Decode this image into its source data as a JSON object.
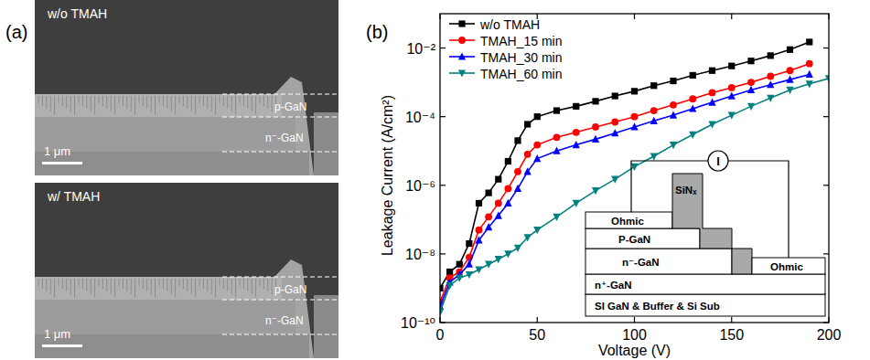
{
  "chart_data": {
    "type": "line",
    "x_label": "Voltage (V)",
    "y_label": "Leakage Current (A/cm²)",
    "x": [
      0,
      5,
      10,
      15,
      20,
      25,
      30,
      35,
      40,
      45,
      50,
      60,
      70,
      80,
      90,
      100,
      110,
      120,
      130,
      140,
      150,
      160,
      170,
      180,
      190,
      200
    ],
    "series": [
      {
        "name": "w/o TMAH",
        "color": "#000000",
        "marker": "square",
        "values": [
          1e-09,
          3e-09,
          5e-09,
          2e-08,
          3e-07,
          6e-07,
          1.5e-06,
          5e-06,
          2e-05,
          6e-05,
          0.0001,
          0.00015,
          0.0002,
          0.00028,
          0.0004,
          0.00055,
          0.0008,
          0.0011,
          0.0016,
          0.0022,
          0.003,
          0.0042,
          0.006,
          0.009,
          0.015,
          null
        ]
      },
      {
        "name": "TMAH_15 min",
        "color": "#ff0000",
        "marker": "circle",
        "values": [
          4e-10,
          2e-09,
          3e-09,
          8e-09,
          5e-08,
          1.2e-07,
          3e-07,
          8e-07,
          2.5e-06,
          8e-06,
          1.5e-05,
          2.5e-05,
          3.5e-05,
          5e-05,
          7e-05,
          0.0001,
          0.00015,
          0.00022,
          0.00033,
          0.0005,
          0.0007,
          0.001,
          0.0015,
          0.0022,
          0.0035,
          null
        ]
      },
      {
        "name": "TMAH_30 min",
        "color": "#0000ff",
        "marker": "triangle-up",
        "values": [
          3e-10,
          1.5e-09,
          2.5e-09,
          5e-09,
          2.5e-08,
          6e-08,
          1.3e-07,
          3e-07,
          8e-07,
          2.5e-06,
          6e-06,
          1e-05,
          1.5e-05,
          2.2e-05,
          3.3e-05,
          5e-05,
          7.5e-05,
          0.00011,
          0.00017,
          0.00026,
          0.0004,
          0.0006,
          0.00085,
          0.0012,
          0.0017,
          null
        ]
      },
      {
        "name": "TMAH_60 min",
        "color": "#008080",
        "marker": "triangle-down",
        "values": [
          2e-10,
          1.2e-09,
          2e-09,
          2.5e-09,
          3.5e-09,
          5e-09,
          7e-09,
          1e-08,
          1.5e-08,
          3e-08,
          5e-08,
          1.2e-07,
          3e-07,
          7e-07,
          1.5e-06,
          3.5e-06,
          7e-06,
          1.5e-05,
          3e-05,
          6e-05,
          0.00011,
          0.0002,
          0.00035,
          0.0006,
          0.0009,
          0.0013
        ]
      }
    ],
    "xlim": [
      0,
      200
    ],
    "xticks": [
      0,
      50,
      100,
      150,
      200
    ],
    "ylim": [
      1e-10,
      0.1
    ],
    "yticks": [
      {
        "value": 1e-10,
        "label": "10⁻¹⁰"
      },
      {
        "value": 1e-08,
        "label": "10⁻⁸"
      },
      {
        "value": 1e-06,
        "label": "10⁻⁶"
      },
      {
        "value": 0.0001,
        "label": "10⁻⁴"
      },
      {
        "value": 0.01,
        "label": "10⁻²"
      }
    ],
    "log": "y",
    "grid": false,
    "legend": "upper left"
  },
  "figure": {
    "panel_labels": [
      "(a)",
      "(b)"
    ]
  },
  "sem_images": [
    {
      "label": "w/o TMAH",
      "layers": [
        "p-GaN",
        "n⁻-GaN"
      ],
      "scale_bar": "1 μm"
    },
    {
      "label": "w/ TMAH",
      "layers": [
        "p-GaN",
        "n⁻-GaN"
      ],
      "scale_bar": "1 μm"
    }
  ],
  "inset": {
    "meter": "I",
    "left_contact": "Ohmic",
    "passivation": "SiNₓ",
    "p_layer": "P-GaN",
    "drift_layer": "n⁻-GaN",
    "right_contact": "Ohmic",
    "contact_layer": "n⁺-GaN",
    "substrate": "SI GaN & Buffer & Si Sub"
  }
}
